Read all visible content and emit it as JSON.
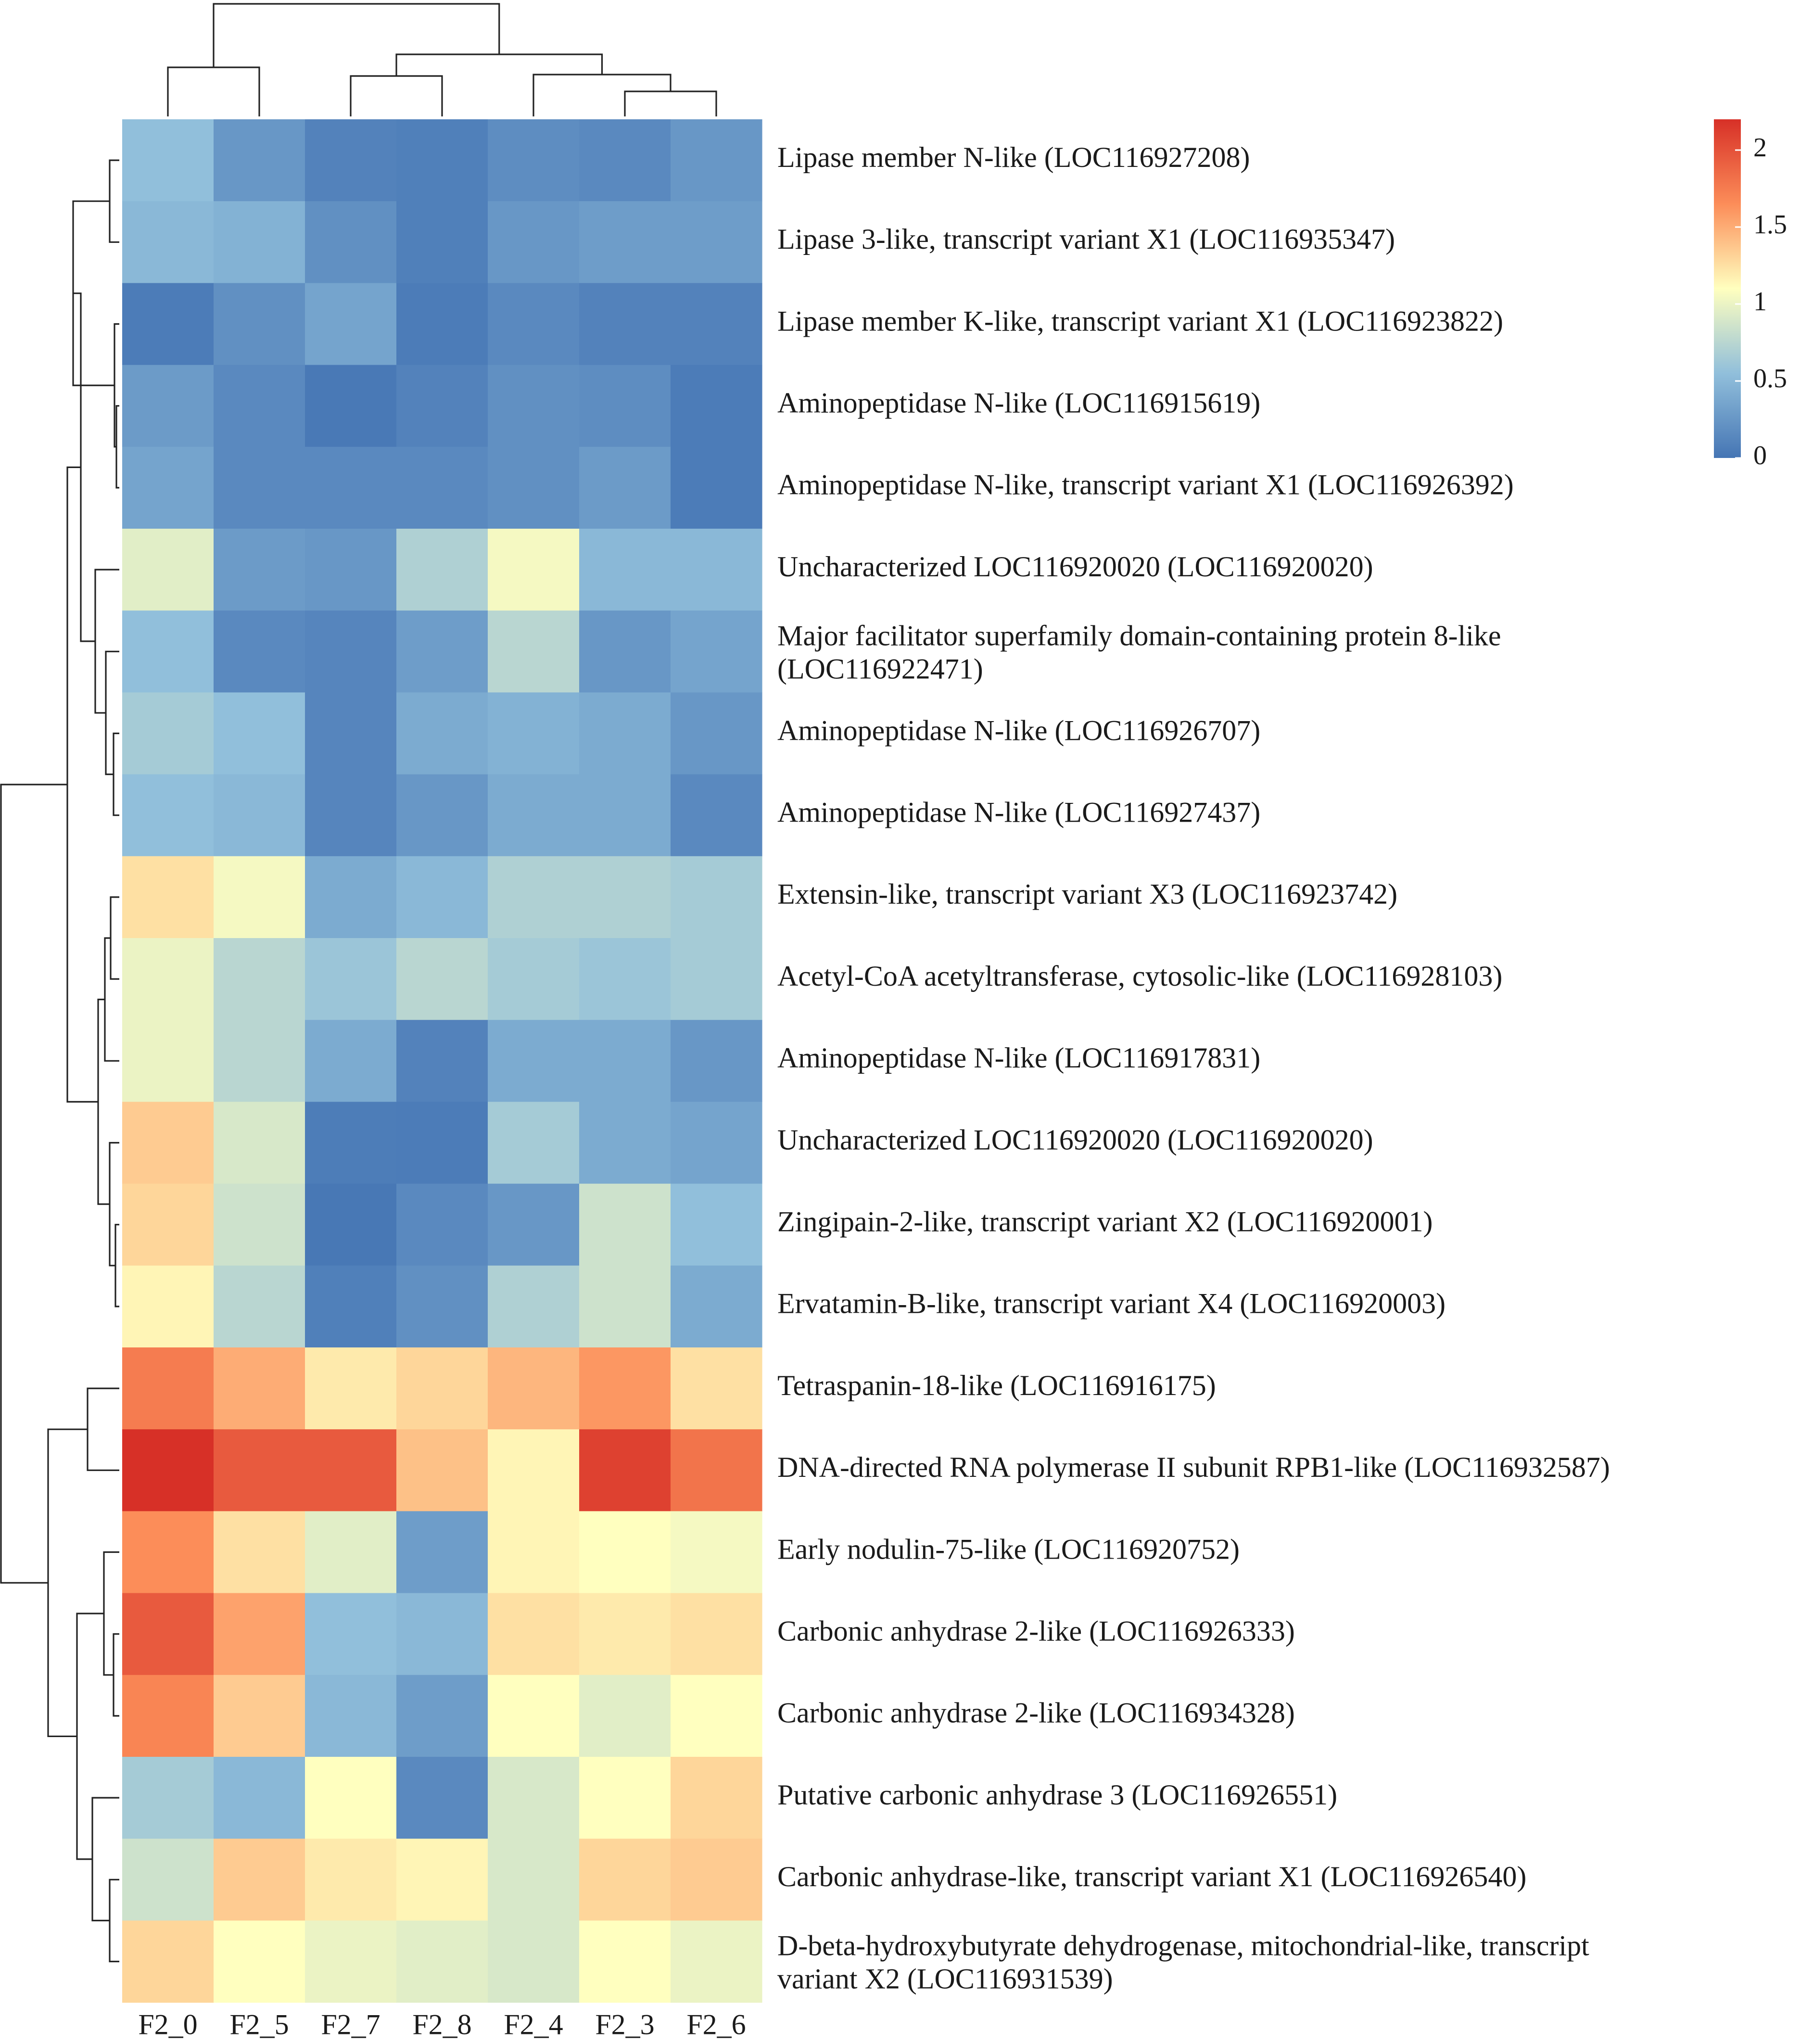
{
  "chart_data": {
    "type": "heatmap",
    "title": "",
    "xlabel": "",
    "ylabel": "",
    "columns": [
      "F2_0",
      "F2_5",
      "F2_7",
      "F2_8",
      "F2_4",
      "F2_3",
      "F2_6"
    ],
    "rows": [
      "Lipase member N-like (LOC116927208)",
      "Lipase 3-like, transcript variant X1 (LOC116935347)",
      "Lipase member K-like, transcript variant X1 (LOC116923822)",
      "Aminopeptidase N-like (LOC116915619)",
      "Aminopeptidase N-like, transcript variant X1 (LOC116926392)",
      "Uncharacterized LOC116920020 (LOC116920020)",
      "Major facilitator superfamily domain-containing protein 8-like (LOC116922471)",
      "Aminopeptidase N-like (LOC116926707)",
      "Aminopeptidase N-like (LOC116927437)",
      "Extensin-like, transcript variant X3 (LOC116923742)",
      "Acetyl-CoA acetyltransferase, cytosolic-like (LOC116928103)",
      "Aminopeptidase N-like (LOC116917831)",
      "Uncharacterized LOC116920020 (LOC116920020)",
      "Zingipain-2-like, transcript variant X2 (LOC116920001)",
      "Ervatamin-B-like, transcript variant X4 (LOC116920003)",
      "Tetraspanin-18-like (LOC116916175)",
      "DNA-directed RNA polymerase II subunit RPB1-like (LOC116932587)",
      "Early nodulin-75-like (LOC116920752)",
      "Carbonic anhydrase 2-like (LOC116926333)",
      "Carbonic anhydrase 2-like (LOC116934328)",
      "Putative carbonic anhydrase 3 (LOC116926551)",
      "Carbonic anhydrase-like, transcript variant X1 (LOC116926540)",
      "D-beta-hydroxybutyrate dehydrogenase, mitochondrial-like, transcript variant X2 (LOC116931539)"
    ],
    "values": [
      [
        0.55,
        0.25,
        0.1,
        0.08,
        0.18,
        0.15,
        0.25
      ],
      [
        0.5,
        0.45,
        0.2,
        0.08,
        0.25,
        0.3,
        0.3
      ],
      [
        0.05,
        0.2,
        0.35,
        0.05,
        0.15,
        0.1,
        0.1
      ],
      [
        0.28,
        0.15,
        0.03,
        0.1,
        0.2,
        0.18,
        0.05
      ],
      [
        0.35,
        0.15,
        0.15,
        0.15,
        0.2,
        0.28,
        0.05
      ],
      [
        0.95,
        0.28,
        0.25,
        0.7,
        1.05,
        0.5,
        0.5
      ],
      [
        0.55,
        0.15,
        0.12,
        0.3,
        0.75,
        0.25,
        0.35
      ],
      [
        0.65,
        0.55,
        0.12,
        0.4,
        0.45,
        0.4,
        0.25
      ],
      [
        0.55,
        0.5,
        0.12,
        0.25,
        0.4,
        0.4,
        0.15
      ],
      [
        1.25,
        1.05,
        0.4,
        0.5,
        0.7,
        0.7,
        0.65
      ],
      [
        1.0,
        0.75,
        0.6,
        0.75,
        0.65,
        0.6,
        0.65
      ],
      [
        1.0,
        0.75,
        0.4,
        0.1,
        0.4,
        0.4,
        0.25
      ],
      [
        1.35,
        0.9,
        0.06,
        0.05,
        0.65,
        0.4,
        0.35
      ],
      [
        1.3,
        0.85,
        0.02,
        0.15,
        0.25,
        0.85,
        0.55
      ],
      [
        1.15,
        0.75,
        0.08,
        0.2,
        0.7,
        0.85,
        0.4
      ],
      [
        1.75,
        1.5,
        1.2,
        1.3,
        1.45,
        1.6,
        1.25
      ],
      [
        2.2,
        1.95,
        1.95,
        1.4,
        1.15,
        2.1,
        1.8
      ],
      [
        1.65,
        1.25,
        0.95,
        0.3,
        1.15,
        1.1,
        1.05
      ],
      [
        1.95,
        1.55,
        0.55,
        0.5,
        1.25,
        1.2,
        1.25
      ],
      [
        1.7,
        1.35,
        0.5,
        0.3,
        1.1,
        0.95,
        1.1
      ],
      [
        0.65,
        0.5,
        1.1,
        0.15,
        0.9,
        1.1,
        1.3
      ],
      [
        0.85,
        1.35,
        1.2,
        1.15,
        0.9,
        1.3,
        1.35
      ],
      [
        1.3,
        1.1,
        1.0,
        0.95,
        0.9,
        1.1,
        1.0
      ]
    ],
    "legend": {
      "position": "top-right",
      "ticks": [
        "0",
        "0.5",
        "1",
        "1.5",
        "2"
      ],
      "min": 0,
      "max": 2.2,
      "colors": [
        "#4575b4",
        "#91bfdb",
        "#ffffbf",
        "#fc8d59",
        "#d73027"
      ]
    },
    "dendrograms": [
      "rows-left",
      "columns-top"
    ]
  }
}
